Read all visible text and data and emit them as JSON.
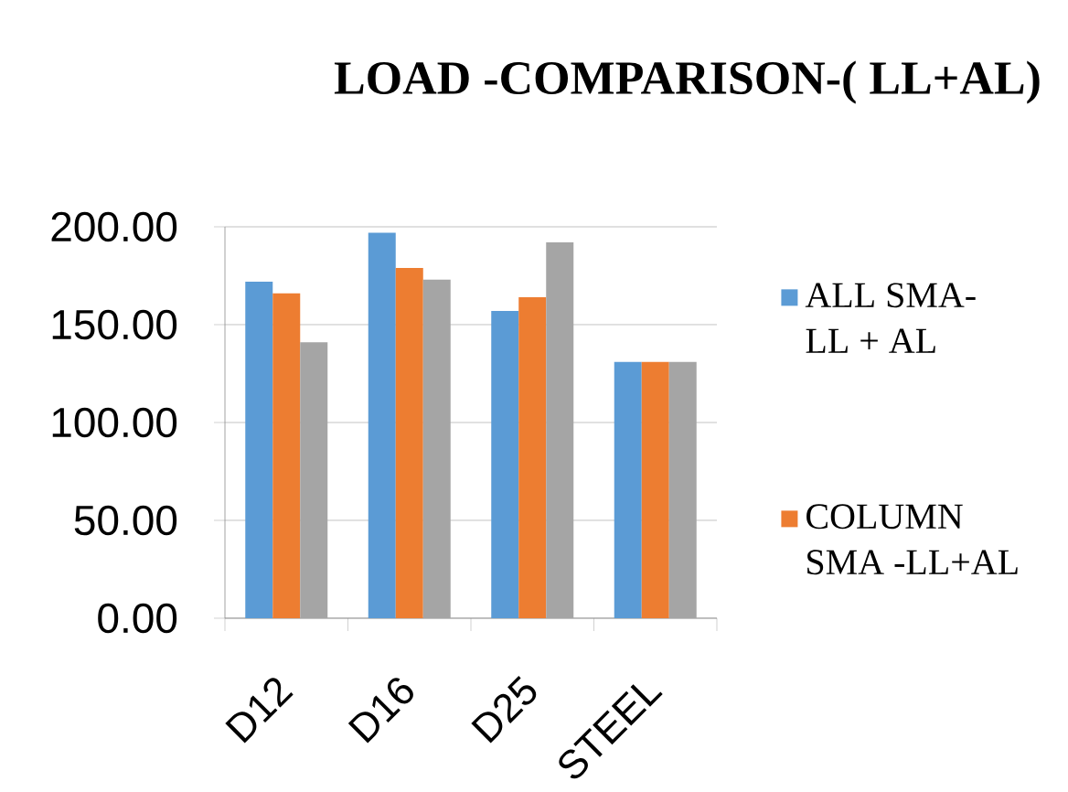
{
  "chart_data": {
    "type": "bar",
    "title": "LOAD -COMPARISON-( LL+AL)",
    "categories": [
      "D12",
      "D16",
      "D25",
      "STEEL"
    ],
    "series": [
      {
        "name": "ALL SMA-LL + AL",
        "color": "#5b9bd5",
        "values": [
          172,
          197,
          157,
          131
        ]
      },
      {
        "name": "COLUMN SMA -LL+AL",
        "color": "#ed7d31",
        "values": [
          166,
          179,
          164,
          131
        ]
      },
      {
        "color": "#a5a5a5",
        "values": [
          141,
          173,
          192,
          131
        ]
      }
    ],
    "ylim": [
      0,
      200
    ],
    "yticks": [
      {
        "value": 0,
        "label": "0.00"
      },
      {
        "value": 50,
        "label": "50.00"
      },
      {
        "value": 100,
        "label": "100.00"
      },
      {
        "value": 150,
        "label": "150.00"
      },
      {
        "value": 200,
        "label": "200.00"
      }
    ],
    "grid": "y",
    "legend": "right"
  }
}
